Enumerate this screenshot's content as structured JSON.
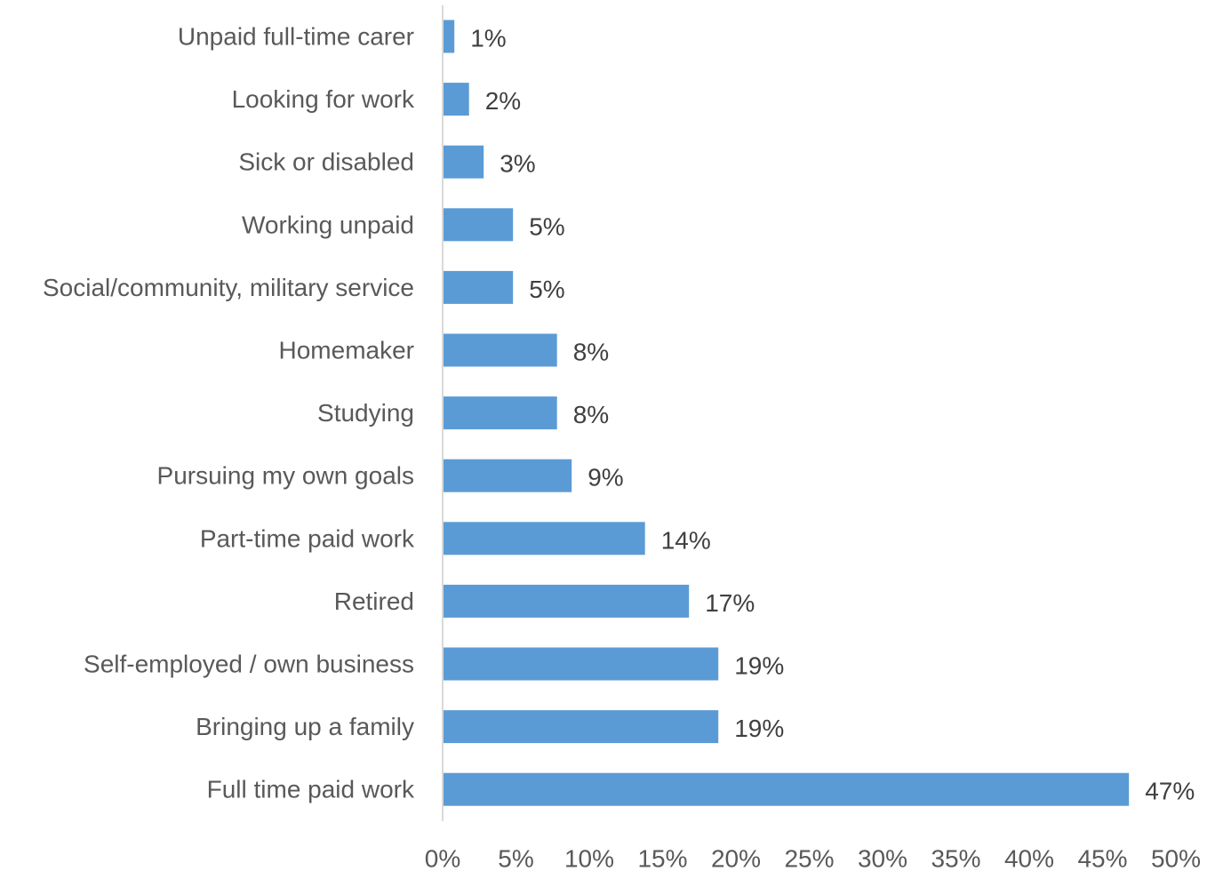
{
  "chart_data": {
    "type": "bar",
    "orientation": "horizontal",
    "title": "",
    "xlabel": "",
    "ylabel": "",
    "categories": [
      "Unpaid full-time carer",
      "Looking for work",
      "Sick or disabled",
      "Working unpaid",
      "Social/community, military service",
      "Homemaker",
      "Studying",
      "Pursuing my own goals",
      "Part-time paid work",
      "Retired",
      "Self-employed / own business",
      "Bringing up a family",
      "Full time paid work"
    ],
    "values": [
      0.8,
      1.8,
      2.8,
      4.8,
      4.8,
      7.8,
      7.8,
      8.8,
      13.8,
      16.8,
      18.8,
      18.8,
      46.8
    ],
    "data_labels": [
      "1%",
      "2%",
      "3%",
      "5%",
      "5%",
      "8%",
      "8%",
      "9%",
      "14%",
      "17%",
      "19%",
      "19%",
      "47%"
    ],
    "xlim": [
      0,
      50
    ],
    "x_ticks": [
      0,
      5,
      10,
      15,
      20,
      25,
      30,
      35,
      40,
      45,
      50
    ],
    "x_tick_labels": [
      "0%",
      "5%",
      "10%",
      "15%",
      "20%",
      "25%",
      "30%",
      "35%",
      "40%",
      "45%",
      "50%"
    ],
    "grid": false,
    "legend": "none",
    "bar_color": "#5b9bd5",
    "axis_color": "#d9d9d9"
  }
}
